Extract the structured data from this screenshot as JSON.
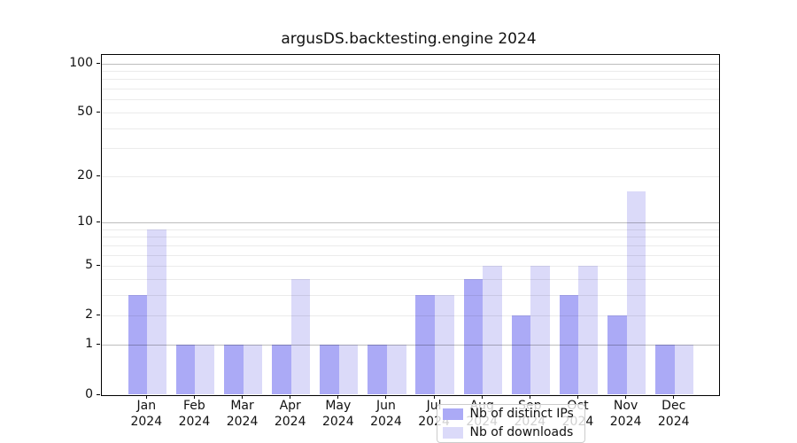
{
  "title": "argusDS.backtesting.engine 2024",
  "chart_data": {
    "type": "bar",
    "title": "argusDS.backtesting.engine 2024",
    "categories": [
      "Jan",
      "Feb",
      "Mar",
      "Apr",
      "May",
      "Jun",
      "Jul",
      "Aug",
      "Sep",
      "Oct",
      "Nov",
      "Dec"
    ],
    "category_year": "2024",
    "series": [
      {
        "name": "Nb of distinct IPs",
        "color": "#abaaf6",
        "values": [
          3,
          1,
          1,
          1,
          1,
          1,
          3,
          4,
          2,
          3,
          2,
          1
        ]
      },
      {
        "name": "Nb of downloads",
        "color": "#dbdaf9",
        "values": [
          9,
          1,
          1,
          4,
          1,
          1,
          3,
          5,
          5,
          5,
          16,
          1
        ]
      }
    ],
    "xlabel": "",
    "ylabel": "",
    "y_scale": "log1p",
    "y_tick_values": [
      0,
      1,
      2,
      5,
      10,
      20,
      50,
      100
    ],
    "y_tick_labels": [
      "0",
      "1",
      "2",
      "5",
      "10",
      "20",
      "50",
      "100"
    ],
    "major_gridline_values": [
      1,
      10,
      100
    ],
    "minor_gridline_values": [
      2,
      3,
      4,
      5,
      6,
      7,
      8,
      9,
      20,
      30,
      40,
      50,
      60,
      70,
      80,
      90
    ],
    "ylim": [
      0,
      112
    ],
    "grid": "on",
    "legend_position": "lower center"
  },
  "legend": {
    "items": [
      {
        "label": "Nb of distinct IPs",
        "color": "#abaaf6"
      },
      {
        "label": "Nb of downloads",
        "color": "#dbdaf9"
      }
    ]
  }
}
